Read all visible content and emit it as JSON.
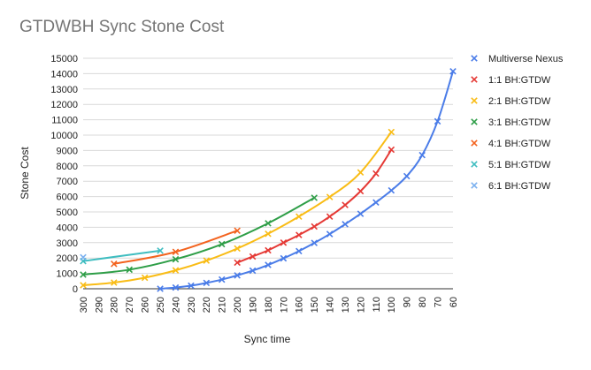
{
  "chart_data": {
    "type": "line",
    "title": "GTDWBH Sync Stone Cost",
    "xlabel": "Sync time",
    "ylabel": "Stone Cost",
    "x_reversed": true,
    "xlim": [
      300,
      60
    ],
    "ylim": [
      0,
      15000
    ],
    "x_ticks": [
      300,
      290,
      280,
      270,
      260,
      250,
      240,
      230,
      220,
      210,
      200,
      190,
      180,
      170,
      160,
      150,
      140,
      130,
      120,
      110,
      100,
      90,
      80,
      70,
      60
    ],
    "y_ticks": [
      0,
      1000,
      2000,
      3000,
      4000,
      5000,
      6000,
      7000,
      8000,
      9000,
      10000,
      11000,
      12000,
      13000,
      14000,
      15000
    ],
    "grid": "horizontal",
    "legend_position": "right",
    "marker": "x",
    "series": [
      {
        "name": "Multiverse Nexus",
        "color": "#4a7ce8",
        "x": [
          250,
          240,
          230,
          220,
          210,
          200,
          190,
          180,
          170,
          160,
          150,
          140,
          130,
          120,
          110,
          100,
          90,
          80,
          70,
          60
        ],
        "y": [
          0,
          80,
          200,
          380,
          600,
          870,
          1180,
          1550,
          1980,
          2450,
          2980,
          3560,
          4200,
          4880,
          5620,
          6400,
          7330,
          8700,
          10900,
          14150
        ]
      },
      {
        "name": "1:1 BH:GTDW",
        "color": "#e53935",
        "x": [
          200,
          190,
          180,
          170,
          160,
          150,
          140,
          130,
          120,
          110,
          100
        ],
        "y": [
          1700,
          2100,
          2500,
          3000,
          3500,
          4050,
          4700,
          5450,
          6350,
          7500,
          9050
        ]
      },
      {
        "name": "2:1 BH:GTDW",
        "color": "#f9bc15",
        "x": [
          300,
          280,
          260,
          240,
          220,
          200,
          180,
          160,
          140,
          120,
          100
        ],
        "y": [
          230,
          400,
          720,
          1200,
          1830,
          2620,
          3580,
          4700,
          5970,
          7570,
          10200
        ]
      },
      {
        "name": "3:1 BH:GTDW",
        "color": "#2e9e47",
        "x": [
          300,
          270,
          240,
          210,
          180,
          150
        ],
        "y": [
          920,
          1240,
          1920,
          2900,
          4260,
          5920
        ]
      },
      {
        "name": "4:1 BH:GTDW",
        "color": "#f3631f",
        "x": [
          280,
          240,
          200
        ],
        "y": [
          1620,
          2400,
          3780
        ]
      },
      {
        "name": "5:1 BH:GTDW",
        "color": "#3fbdc0",
        "x": [
          300,
          250
        ],
        "y": [
          1800,
          2480
        ]
      },
      {
        "name": "6:1 BH:GTDW",
        "color": "#7bb0ef",
        "x": [
          300
        ],
        "y": [
          2050
        ]
      }
    ]
  }
}
